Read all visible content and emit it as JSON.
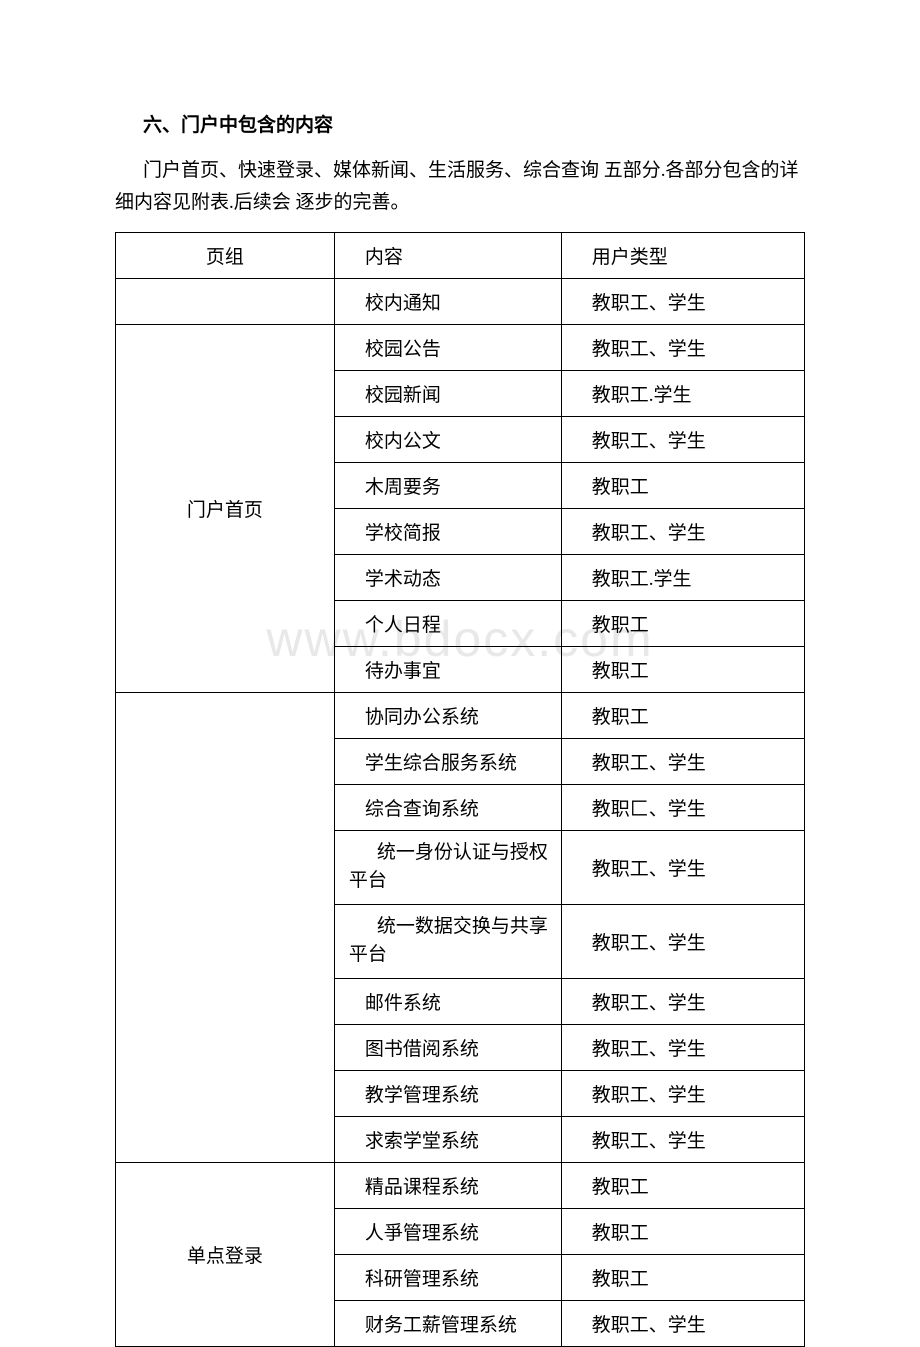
{
  "section": {
    "title": "六、门户中包含的内容",
    "intro": "门户首页、快速登录、媒体新闻、生活服务、综合查询 五部分.各部分包含的详细内容见附表.后续会 逐步的完善。"
  },
  "watermark": "www.bdocx.com",
  "table": {
    "header": {
      "col1": "页组",
      "col2": "内容",
      "col3": "用户类型"
    },
    "rows": [
      {
        "group": "",
        "content": "校内通知",
        "users": "教职工、学生",
        "rowspan": 1
      },
      {
        "group": "门户首页",
        "content": "校园公告",
        "users": "教职工、学生",
        "rowspan": 8
      },
      {
        "content": "校园新闻",
        "users": "教职工.学生"
      },
      {
        "content": "校内公文",
        "users": "教职工、学生"
      },
      {
        "content": "木周要务",
        "users": "教职工"
      },
      {
        "content": "学校简报",
        "users": "教职工、学生"
      },
      {
        "content": "学术动态",
        "users": "教职工.学生"
      },
      {
        "content": "个人日程",
        "users": "教职工"
      },
      {
        "content": "待办事宜",
        "users": "教职工"
      },
      {
        "group": "",
        "content": "协同办公系统",
        "users": "教职工",
        "rowspan": 9,
        "noLeftBorder": true
      },
      {
        "content": "学生综合服务系统",
        "users": "教职工、学生"
      },
      {
        "content": "综合查询系统",
        "users": "教职匚、学生"
      },
      {
        "content": "统一身份认证与授权平台",
        "users": "教职工、学生",
        "wrap": true
      },
      {
        "content": "统一数据交换与共享平台",
        "users": "教职工、学生",
        "wrap": true
      },
      {
        "content": "邮件系统",
        "users": "教职工、学生"
      },
      {
        "content": "图书借阅系统",
        "users": "教职工、学生"
      },
      {
        "content": "教学管理系统",
        "users": "教职工、学生"
      },
      {
        "content": "求索学堂系统",
        "users": "教职工、学生"
      },
      {
        "group": "单点登录",
        "content": "精品课程系统",
        "users": "教职工",
        "rowspan": 4
      },
      {
        "content": "人爭管理系统",
        "users": "教职工"
      },
      {
        "content": "科研管理系统",
        "users": "教职工"
      },
      {
        "content": "财务工薪管理系统",
        "users": "教职工、学生"
      }
    ]
  },
  "styles": {
    "background_color": "#ffffff",
    "text_color": "#000000",
    "border_color": "#000000",
    "watermark_color": "#e8e8e8",
    "body_fontsize": 19,
    "title_fontsize": 19,
    "watermark_fontsize": 50
  }
}
